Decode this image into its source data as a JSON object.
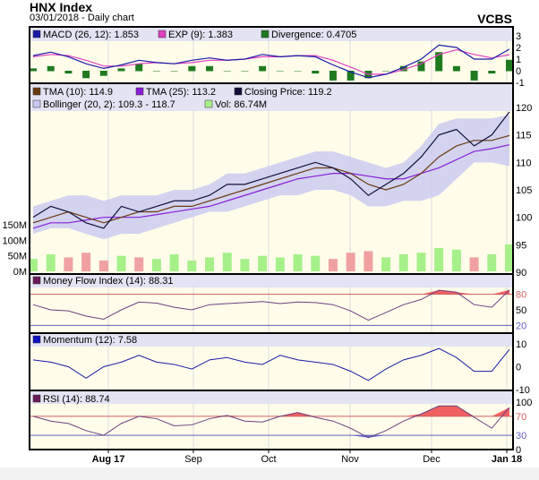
{
  "header": {
    "title": "HNX Index",
    "subtitle": "03/01/2018 - Daily chart",
    "brand": "VCBS"
  },
  "colors": {
    "panel_bg": "#fffdea",
    "header_bg": "#e3e3f3",
    "band": "#c8c8f0",
    "macd": "#1a1aa8",
    "exp": "#e040c0",
    "divergence": "#1f7a1f",
    "tma10": "#6b3a12",
    "tma25": "#8a1ed8",
    "close": "#10103a",
    "vol_up": "#a6f08a",
    "vol_down": "#f0a0a0",
    "overbought": "#f06060",
    "oversold": "#7070e0",
    "ref_red": "#d06060",
    "ref_blue": "#6060c0"
  },
  "chart_data": [
    {
      "type": "line",
      "panel": "MACD",
      "legend": [
        "MACD (26, 12): 1.853",
        "EXP (9): 1.383",
        "Divergence: 0.4705"
      ],
      "ylim": [
        -1,
        3
      ],
      "yticks": [
        "3",
        "2",
        "1",
        "0",
        "-1"
      ],
      "series": [
        {
          "name": "MACD (26, 12)",
          "values": [
            1.3,
            1.6,
            1.2,
            0.6,
            0.2,
            0.5,
            0.9,
            0.7,
            0.6,
            0.9,
            1.1,
            0.9,
            1.0,
            1.4,
            1.2,
            1.3,
            1.2,
            0.5,
            -0.1,
            -0.6,
            -0.3,
            0.3,
            1.0,
            2.2,
            2.0,
            1.0,
            1.0,
            1.853
          ]
        },
        {
          "name": "EXP (9)",
          "values": [
            1.2,
            1.4,
            1.3,
            0.9,
            0.4,
            0.4,
            0.6,
            0.7,
            0.6,
            0.7,
            0.9,
            0.9,
            1.0,
            1.2,
            1.2,
            1.3,
            1.3,
            0.9,
            0.3,
            -0.3,
            -0.3,
            0.1,
            0.6,
            1.4,
            1.8,
            1.4,
            1.1,
            1.383
          ]
        }
      ]
    },
    {
      "type": "line",
      "panel": "Price",
      "legend": [
        "TMA (10): 114.9",
        "TMA (25): 113.2",
        "Closing Price: 119.2",
        "Bollinger (20, 2): 109.3 - 118.7",
        "Vol: 86.74M"
      ],
      "ylim": [
        90,
        121
      ],
      "yticks": [
        "120",
        "115",
        "110",
        "105",
        "100",
        "95",
        "90"
      ],
      "vol_ticks": [
        "150M",
        "100M",
        "50M",
        "0M"
      ],
      "vol_ylim": [
        0,
        150
      ],
      "series": [
        {
          "name": "Closing Price",
          "values": [
            100,
            102,
            101,
            99,
            98,
            102,
            101,
            102,
            103,
            103,
            104,
            106,
            106,
            107,
            108,
            109,
            110,
            109,
            107,
            104,
            106,
            108,
            111,
            115,
            116,
            113,
            115,
            119.2
          ]
        },
        {
          "name": "TMA (10)",
          "values": [
            99,
            100,
            101,
            100,
            99,
            100,
            101,
            101,
            102,
            102,
            103,
            104,
            105,
            106,
            107,
            108,
            109,
            109,
            108,
            106,
            105,
            106,
            108,
            111,
            113,
            114,
            114,
            114.9
          ]
        },
        {
          "name": "TMA (25)",
          "values": [
            98,
            99,
            99,
            99.5,
            100,
            100,
            100,
            100.5,
            101,
            101.5,
            102,
            103,
            104,
            105,
            106,
            107,
            107.5,
            108,
            108,
            107.5,
            107,
            107,
            108,
            109,
            110.5,
            112,
            112.5,
            113.2
          ]
        },
        {
          "name": "Bollinger upper",
          "values": [
            102,
            103,
            104,
            104,
            103,
            104,
            104,
            104,
            105,
            105,
            106,
            108,
            108,
            109,
            110,
            111,
            112,
            112,
            111,
            110,
            109,
            110,
            113,
            117,
            118,
            118,
            118,
            118.7
          ]
        },
        {
          "name": "Bollinger lower",
          "values": [
            97,
            98,
            98,
            97,
            96,
            97,
            97,
            98,
            99,
            100,
            101,
            101,
            102,
            103,
            104,
            104,
            105,
            105,
            104,
            102,
            102,
            103,
            103,
            104,
            107,
            110,
            110,
            109.3
          ]
        },
        {
          "name": "Vol",
          "values": [
            40,
            55,
            45,
            60,
            35,
            50,
            45,
            40,
            55,
            35,
            45,
            60,
            40,
            50,
            45,
            55,
            50,
            40,
            60,
            65,
            45,
            55,
            60,
            75,
            70,
            45,
            55,
            86.74
          ]
        }
      ]
    },
    {
      "type": "area",
      "panel": "MFI",
      "legend": [
        "Money Flow Index (14): 88.31"
      ],
      "ylim": [
        0,
        100
      ],
      "yticks": [
        "80",
        "50",
        "20"
      ],
      "ref": [
        80,
        20
      ],
      "values": [
        60,
        50,
        48,
        38,
        32,
        50,
        65,
        63,
        55,
        50,
        60,
        62,
        64,
        66,
        62,
        65,
        64,
        60,
        48,
        30,
        45,
        60,
        70,
        88,
        84,
        60,
        55,
        88.31
      ]
    },
    {
      "type": "line",
      "panel": "Momentum",
      "legend": [
        "Momentum (12): 7.58"
      ],
      "ylim": [
        -10,
        10
      ],
      "yticks": [
        "10",
        "0",
        "-10"
      ],
      "values": [
        3,
        2,
        0,
        -5,
        0,
        2,
        5,
        2,
        1,
        -1,
        3,
        4,
        2,
        1,
        5,
        3,
        2,
        1,
        -2,
        -6,
        -1,
        3,
        5,
        8,
        4,
        -2,
        -2,
        7.58
      ]
    },
    {
      "type": "area",
      "panel": "RSI",
      "legend": [
        "RSI (14): 88.74"
      ],
      "ylim": [
        0,
        100
      ],
      "yticks": [
        "100",
        "70",
        "30",
        "0"
      ],
      "ref": [
        70,
        30
      ],
      "values": [
        70,
        60,
        55,
        40,
        30,
        55,
        70,
        65,
        50,
        52,
        65,
        72,
        60,
        58,
        70,
        78,
        68,
        60,
        45,
        25,
        40,
        60,
        75,
        92,
        92,
        68,
        45,
        88.74
      ]
    }
  ],
  "xaxis": {
    "ticks": [
      "Aug 17",
      "Sep",
      "Oct",
      "Nov",
      "Dec",
      "Jan 18"
    ],
    "bold": [
      "Aug 17",
      "Jan 18"
    ]
  }
}
